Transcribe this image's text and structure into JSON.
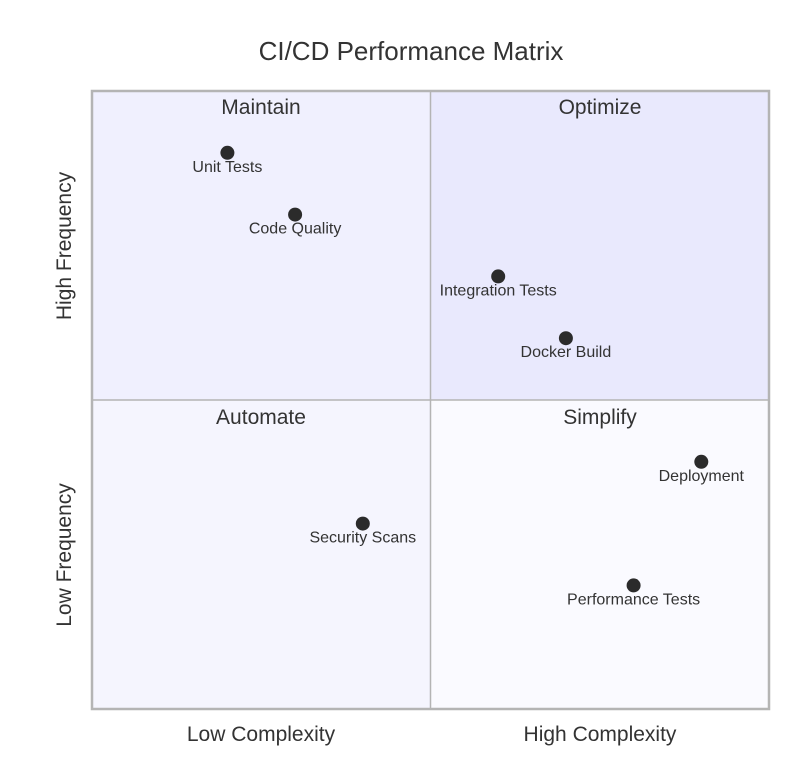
{
  "chart_data": {
    "type": "scatter",
    "title": "CI/CD Performance Matrix",
    "xlim": [
      0,
      1
    ],
    "ylim": [
      0,
      1
    ],
    "grid": false,
    "x_labels": {
      "low": "Low Complexity",
      "high": "High Complexity"
    },
    "y_labels": {
      "low": "Low Frequency",
      "high": "High Frequency"
    },
    "quadrants": {
      "top_left": "Maintain",
      "top_right": "Optimize",
      "bottom_left": "Automate",
      "bottom_right": "Simplify"
    },
    "points": [
      {
        "label": "Unit Tests",
        "x": 0.2,
        "y": 0.9
      },
      {
        "label": "Code Quality",
        "x": 0.3,
        "y": 0.8
      },
      {
        "label": "Integration Tests",
        "x": 0.6,
        "y": 0.7
      },
      {
        "label": "Docker Build",
        "x": 0.7,
        "y": 0.6
      },
      {
        "label": "Deployment",
        "x": 0.9,
        "y": 0.4
      },
      {
        "label": "Security Scans",
        "x": 0.4,
        "y": 0.3
      },
      {
        "label": "Performance Tests",
        "x": 0.8,
        "y": 0.2
      }
    ],
    "colors": {
      "top_left": "#f0f0fe",
      "top_right": "#e9e9fd",
      "bottom_left": "#f5f5fe",
      "bottom_right": "#fafaff",
      "point": "#2b2b2b",
      "border": "#b4b4b4"
    }
  }
}
